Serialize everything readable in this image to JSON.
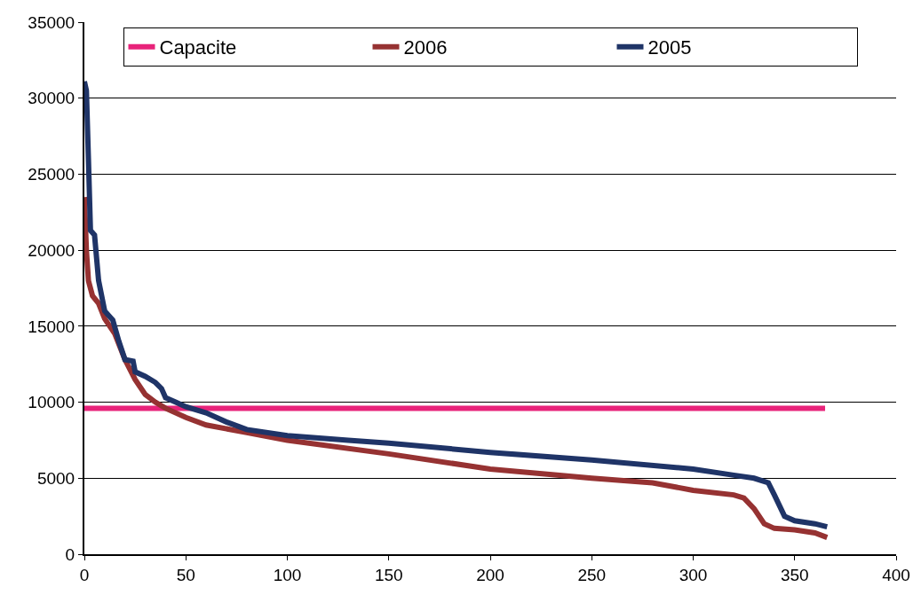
{
  "chart_data": {
    "type": "line",
    "xlim": [
      0,
      400
    ],
    "xticks": [
      0,
      50,
      100,
      150,
      200,
      250,
      300,
      350,
      400
    ],
    "ylim": [
      0,
      35000
    ],
    "yticks": [
      0,
      5000,
      10000,
      15000,
      20000,
      25000,
      30000,
      35000
    ],
    "grid": "y",
    "legend": "top",
    "marker": "none",
    "line_style": "solid",
    "series": [
      {
        "name": "Capacite",
        "color": "#e8237a",
        "x": [
          0,
          365
        ],
        "values": [
          9600,
          9600
        ]
      },
      {
        "name": "2006",
        "color": "#963232",
        "x": [
          0,
          1,
          2,
          4,
          7,
          10,
          15,
          20,
          25,
          30,
          35,
          40,
          50,
          60,
          80,
          100,
          150,
          200,
          250,
          280,
          300,
          320,
          325,
          330,
          335,
          340,
          350,
          360,
          366
        ],
        "values": [
          23500,
          20000,
          18000,
          17000,
          16500,
          15500,
          14500,
          12800,
          11500,
          10500,
          10000,
          9600,
          9000,
          8500,
          8000,
          7500,
          6600,
          5600,
          5000,
          4700,
          4200,
          3900,
          3700,
          3000,
          2000,
          1700,
          1600,
          1400,
          1100
        ]
      },
      {
        "name": "2005",
        "color": "#1f3467",
        "x": [
          0,
          1,
          2,
          3,
          5,
          7,
          10,
          14,
          17,
          20,
          24,
          25,
          30,
          35,
          38,
          40,
          45,
          50,
          60,
          70,
          80,
          100,
          130,
          150,
          200,
          250,
          300,
          320,
          330,
          337,
          340,
          345,
          350,
          360,
          366
        ],
        "values": [
          31100,
          30500,
          26000,
          21300,
          21000,
          18000,
          16000,
          15400,
          14000,
          12800,
          12700,
          12000,
          11700,
          11300,
          10900,
          10300,
          10000,
          9700,
          9300,
          8700,
          8200,
          7800,
          7500,
          7300,
          6700,
          6200,
          5600,
          5200,
          5000,
          4700,
          3900,
          2500,
          2200,
          2000,
          1800
        ]
      }
    ]
  }
}
